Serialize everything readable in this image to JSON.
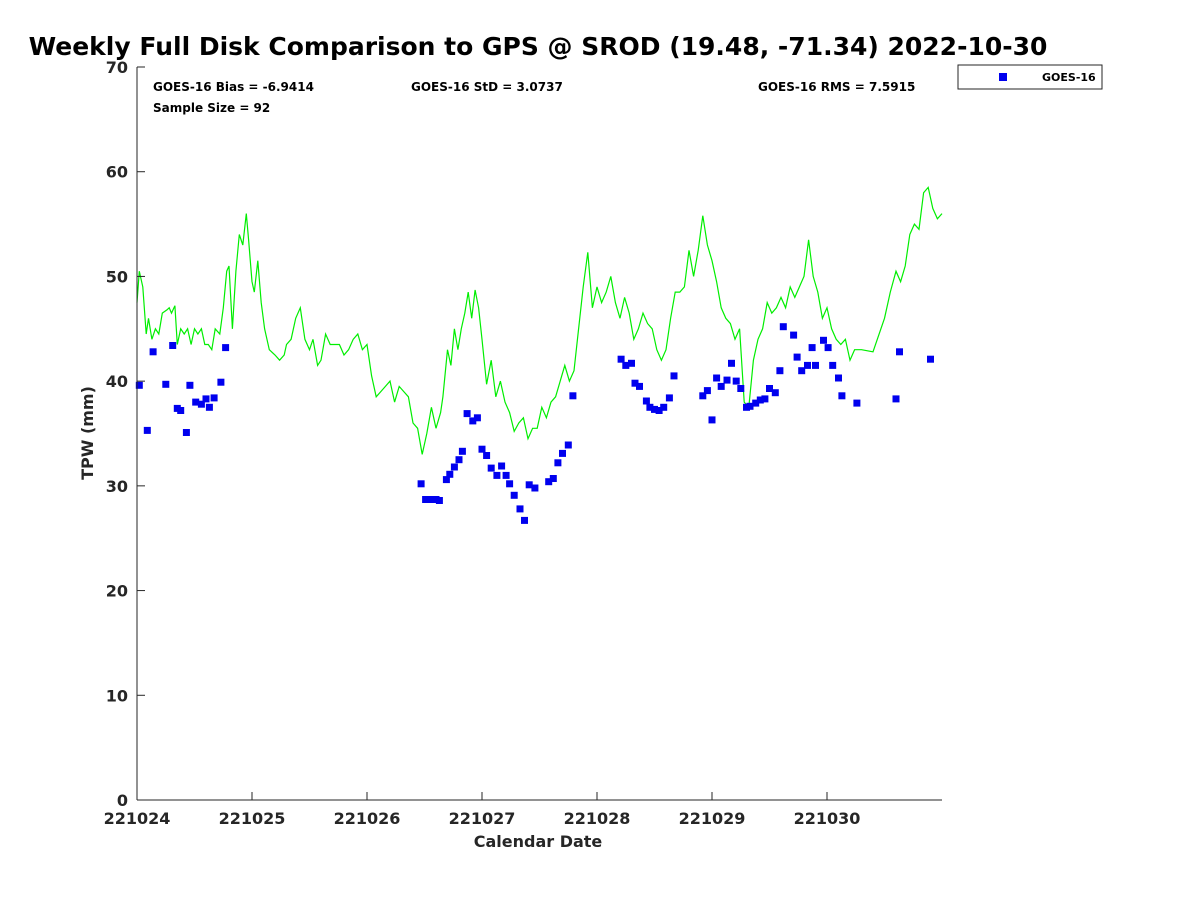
{
  "chart_data": {
    "type": "scatter",
    "title": "Weekly Full Disk Comparison to GPS @ SROD (19.48, -71.34) 2022-10-30",
    "xlabel": "Calendar Date",
    "ylabel": "TPW (mm)",
    "xlim": [
      0,
      7
    ],
    "ylim": [
      0,
      70
    ],
    "x_ticks": [
      0,
      1,
      2,
      3,
      4,
      5,
      6
    ],
    "x_tick_labels": [
      "221024",
      "221025",
      "221026",
      "221027",
      "221028",
      "221029",
      "221030"
    ],
    "y_ticks": [
      0,
      10,
      20,
      30,
      40,
      50,
      60,
      70
    ],
    "y_tick_labels": [
      "0",
      "10",
      "20",
      "30",
      "40",
      "50",
      "60",
      "70"
    ],
    "grid": false,
    "legend": {
      "position": "top-right",
      "entries": [
        {
          "name": "GOES-16",
          "color": "#0000ee",
          "marker": "square"
        }
      ]
    },
    "stats": {
      "bias": "GOES-16 Bias = -6.9414",
      "std": "GOES-16 StD = 3.0737",
      "rms": "GOES-16 RMS = 7.5915",
      "sample": "Sample Size = 92"
    },
    "series": [
      {
        "name": "GPS",
        "kind": "line",
        "color": "#00ee00",
        "points": [
          [
            0.0,
            47.5
          ],
          [
            0.02,
            50.5
          ],
          [
            0.05,
            49
          ],
          [
            0.08,
            44.5
          ],
          [
            0.1,
            46
          ],
          [
            0.13,
            44
          ],
          [
            0.16,
            45
          ],
          [
            0.19,
            44.5
          ],
          [
            0.22,
            46.5
          ],
          [
            0.26,
            46.8
          ],
          [
            0.28,
            47
          ],
          [
            0.3,
            46.5
          ],
          [
            0.33,
            47.2
          ],
          [
            0.35,
            43.5
          ],
          [
            0.38,
            45
          ],
          [
            0.41,
            44.5
          ],
          [
            0.44,
            45
          ],
          [
            0.47,
            43.5
          ],
          [
            0.5,
            45
          ],
          [
            0.53,
            44.5
          ],
          [
            0.56,
            45
          ],
          [
            0.59,
            43.5
          ],
          [
            0.62,
            43.5
          ],
          [
            0.65,
            43
          ],
          [
            0.68,
            45
          ],
          [
            0.72,
            44.5
          ],
          [
            0.75,
            47
          ],
          [
            0.78,
            50.5
          ],
          [
            0.8,
            51
          ],
          [
            0.83,
            45
          ],
          [
            0.86,
            50.5
          ],
          [
            0.89,
            54
          ],
          [
            0.92,
            53
          ],
          [
            0.95,
            56
          ],
          [
            0.97,
            53.5
          ],
          [
            1.0,
            49.5
          ],
          [
            1.02,
            48.5
          ],
          [
            1.05,
            51.5
          ],
          [
            1.08,
            47.5
          ],
          [
            1.11,
            45
          ],
          [
            1.15,
            43
          ],
          [
            1.2,
            42.5
          ],
          [
            1.24,
            42
          ],
          [
            1.28,
            42.5
          ],
          [
            1.3,
            43.5
          ],
          [
            1.34,
            44
          ],
          [
            1.38,
            46
          ],
          [
            1.42,
            47
          ],
          [
            1.46,
            44
          ],
          [
            1.5,
            43
          ],
          [
            1.53,
            44
          ],
          [
            1.57,
            41.5
          ],
          [
            1.6,
            42
          ],
          [
            1.64,
            44.5
          ],
          [
            1.68,
            43.5
          ],
          [
            1.72,
            43.5
          ],
          [
            1.76,
            43.5
          ],
          [
            1.8,
            42.5
          ],
          [
            1.84,
            43
          ],
          [
            1.88,
            44
          ],
          [
            1.92,
            44.5
          ],
          [
            1.96,
            43
          ],
          [
            2.0,
            43.5
          ],
          [
            2.04,
            40.5
          ],
          [
            2.08,
            38.5
          ],
          [
            2.12,
            39
          ],
          [
            2.16,
            39.5
          ],
          [
            2.2,
            40
          ],
          [
            2.24,
            38
          ],
          [
            2.28,
            39.5
          ],
          [
            2.32,
            39
          ],
          [
            2.36,
            38.5
          ],
          [
            2.4,
            36
          ],
          [
            2.44,
            35.5
          ],
          [
            2.48,
            33
          ],
          [
            2.52,
            35
          ],
          [
            2.56,
            37.5
          ],
          [
            2.6,
            35.5
          ],
          [
            2.64,
            37
          ],
          [
            2.66,
            38.5
          ],
          [
            2.7,
            43
          ],
          [
            2.73,
            41.5
          ],
          [
            2.76,
            45
          ],
          [
            2.79,
            43
          ],
          [
            2.82,
            45
          ],
          [
            2.85,
            46.5
          ],
          [
            2.88,
            48.5
          ],
          [
            2.91,
            46
          ],
          [
            2.94,
            48.7
          ],
          [
            2.97,
            47
          ],
          [
            3.0,
            44
          ],
          [
            3.04,
            39.7
          ],
          [
            3.08,
            42
          ],
          [
            3.12,
            38.5
          ],
          [
            3.16,
            40
          ],
          [
            3.2,
            38
          ],
          [
            3.24,
            37
          ],
          [
            3.28,
            35.2
          ],
          [
            3.32,
            36
          ],
          [
            3.36,
            36.5
          ],
          [
            3.4,
            34.5
          ],
          [
            3.44,
            35.5
          ],
          [
            3.48,
            35.5
          ],
          [
            3.52,
            37.5
          ],
          [
            3.56,
            36.5
          ],
          [
            3.6,
            38
          ],
          [
            3.64,
            38.5
          ],
          [
            3.68,
            40
          ],
          [
            3.72,
            41.5
          ],
          [
            3.76,
            40
          ],
          [
            3.8,
            41
          ],
          [
            3.84,
            45
          ],
          [
            3.88,
            49
          ],
          [
            3.92,
            52.3
          ],
          [
            3.96,
            47
          ],
          [
            4.0,
            49
          ],
          [
            4.04,
            47.5
          ],
          [
            4.08,
            48.5
          ],
          [
            4.12,
            50
          ],
          [
            4.16,
            47.5
          ],
          [
            4.2,
            46
          ],
          [
            4.24,
            48
          ],
          [
            4.28,
            46.5
          ],
          [
            4.32,
            44
          ],
          [
            4.36,
            45
          ],
          [
            4.4,
            46.5
          ],
          [
            4.44,
            45.5
          ],
          [
            4.48,
            45
          ],
          [
            4.52,
            43
          ],
          [
            4.56,
            42
          ],
          [
            4.6,
            43
          ],
          [
            4.64,
            46
          ],
          [
            4.68,
            48.5
          ],
          [
            4.72,
            48.5
          ],
          [
            4.76,
            49
          ],
          [
            4.8,
            52.5
          ],
          [
            4.84,
            50
          ],
          [
            4.88,
            52.5
          ],
          [
            4.92,
            55.8
          ],
          [
            4.96,
            53
          ],
          [
            5.0,
            51.5
          ],
          [
            5.04,
            49.5
          ],
          [
            5.08,
            47
          ],
          [
            5.12,
            46
          ],
          [
            5.16,
            45.5
          ],
          [
            5.2,
            44
          ],
          [
            5.24,
            45
          ],
          [
            5.28,
            38
          ],
          [
            5.32,
            37.5
          ],
          [
            5.36,
            42
          ],
          [
            5.4,
            44
          ],
          [
            5.44,
            45
          ],
          [
            5.48,
            47.5
          ],
          [
            5.52,
            46.5
          ],
          [
            5.56,
            47
          ],
          [
            5.6,
            48
          ],
          [
            5.64,
            47
          ],
          [
            5.68,
            49
          ],
          [
            5.72,
            48
          ],
          [
            5.76,
            49
          ],
          [
            5.8,
            50
          ],
          [
            5.84,
            53.5
          ],
          [
            5.88,
            50
          ],
          [
            5.92,
            48.5
          ],
          [
            5.96,
            46
          ],
          [
            6.0,
            47
          ],
          [
            6.04,
            45
          ],
          [
            6.08,
            44
          ],
          [
            6.12,
            43.5
          ],
          [
            6.16,
            44
          ],
          [
            6.2,
            42
          ],
          [
            6.24,
            43
          ],
          [
            6.3,
            43
          ],
          [
            6.4,
            42.8
          ],
          [
            6.5,
            46
          ],
          [
            6.55,
            48.5
          ],
          [
            6.6,
            50.5
          ],
          [
            6.64,
            49.5
          ],
          [
            6.68,
            51
          ],
          [
            6.72,
            54
          ],
          [
            6.76,
            55
          ],
          [
            6.8,
            54.5
          ],
          [
            6.84,
            58
          ],
          [
            6.88,
            58.5
          ],
          [
            6.92,
            56.5
          ],
          [
            6.96,
            55.5
          ],
          [
            7.0,
            56
          ]
        ]
      },
      {
        "name": "GOES-16",
        "kind": "scatter",
        "color": "#0000ee",
        "points": [
          [
            0.02,
            39.6
          ],
          [
            0.09,
            35.3
          ],
          [
            0.14,
            42.8
          ],
          [
            0.25,
            39.7
          ],
          [
            0.31,
            43.4
          ],
          [
            0.35,
            37.4
          ],
          [
            0.38,
            37.2
          ],
          [
            0.43,
            35.1
          ],
          [
            0.46,
            39.6
          ],
          [
            0.51,
            38
          ],
          [
            0.56,
            37.8
          ],
          [
            0.6,
            38.3
          ],
          [
            0.63,
            37.5
          ],
          [
            0.67,
            38.4
          ],
          [
            0.73,
            39.9
          ],
          [
            0.77,
            43.2
          ],
          [
            2.47,
            30.2
          ],
          [
            2.51,
            28.7
          ],
          [
            2.56,
            28.7
          ],
          [
            2.6,
            28.7
          ],
          [
            2.63,
            28.6
          ],
          [
            2.69,
            30.6
          ],
          [
            2.72,
            31.1
          ],
          [
            2.76,
            31.8
          ],
          [
            2.8,
            32.5
          ],
          [
            2.83,
            33.3
          ],
          [
            2.87,
            36.9
          ],
          [
            2.92,
            36.2
          ],
          [
            2.96,
            36.5
          ],
          [
            3.0,
            33.5
          ],
          [
            3.04,
            32.9
          ],
          [
            3.08,
            31.7
          ],
          [
            3.13,
            31
          ],
          [
            3.17,
            31.9
          ],
          [
            3.21,
            31
          ],
          [
            3.24,
            30.2
          ],
          [
            3.28,
            29.1
          ],
          [
            3.33,
            27.8
          ],
          [
            3.37,
            26.7
          ],
          [
            3.41,
            30.1
          ],
          [
            3.46,
            29.8
          ],
          [
            3.58,
            30.4
          ],
          [
            3.62,
            30.7
          ],
          [
            3.66,
            32.2
          ],
          [
            3.7,
            33.1
          ],
          [
            3.75,
            33.9
          ],
          [
            3.79,
            38.6
          ],
          [
            4.21,
            42.1
          ],
          [
            4.25,
            41.5
          ],
          [
            4.3,
            41.7
          ],
          [
            4.33,
            39.8
          ],
          [
            4.37,
            39.5
          ],
          [
            4.43,
            38.1
          ],
          [
            4.46,
            37.5
          ],
          [
            4.5,
            37.3
          ],
          [
            4.54,
            37.2
          ],
          [
            4.58,
            37.5
          ],
          [
            4.63,
            38.4
          ],
          [
            4.67,
            40.5
          ],
          [
            4.92,
            38.6
          ],
          [
            4.96,
            39.1
          ],
          [
            5.0,
            36.3
          ],
          [
            5.04,
            40.3
          ],
          [
            5.08,
            39.5
          ],
          [
            5.13,
            40.1
          ],
          [
            5.17,
            41.7
          ],
          [
            5.21,
            40
          ],
          [
            5.25,
            39.3
          ],
          [
            5.3,
            37.5
          ],
          [
            5.33,
            37.6
          ],
          [
            5.38,
            37.9
          ],
          [
            5.42,
            38.2
          ],
          [
            5.46,
            38.3
          ],
          [
            5.5,
            39.3
          ],
          [
            5.55,
            38.9
          ],
          [
            5.59,
            41
          ],
          [
            5.62,
            45.2
          ],
          [
            5.71,
            44.4
          ],
          [
            5.74,
            42.3
          ],
          [
            5.78,
            41
          ],
          [
            5.83,
            41.5
          ],
          [
            5.87,
            43.2
          ],
          [
            5.9,
            41.5
          ],
          [
            5.97,
            43.9
          ],
          [
            6.01,
            43.2
          ],
          [
            6.05,
            41.5
          ],
          [
            6.1,
            40.3
          ],
          [
            6.13,
            38.6
          ],
          [
            6.26,
            37.9
          ],
          [
            6.6,
            38.3
          ],
          [
            6.63,
            42.8
          ],
          [
            6.9,
            42.1
          ]
        ]
      }
    ]
  }
}
